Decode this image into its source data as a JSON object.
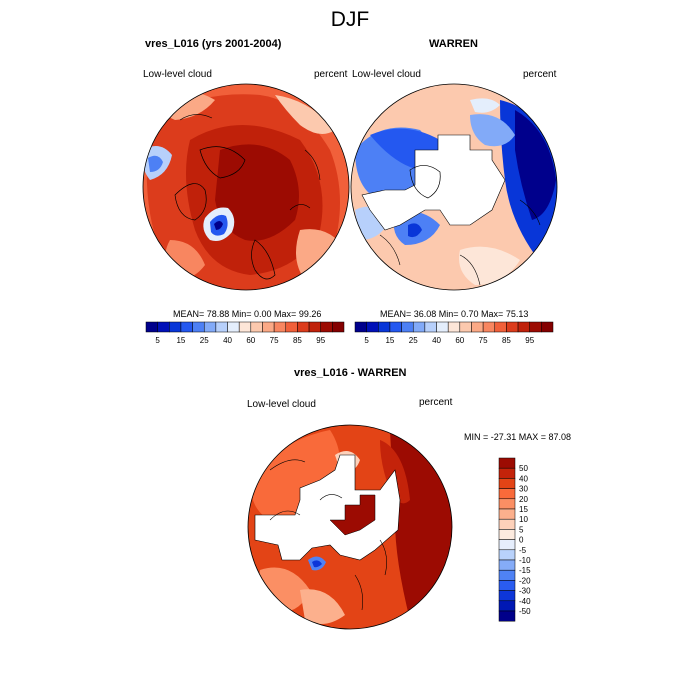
{
  "title": "DJF",
  "panels": [
    {
      "title": "vres_L016 (yrs 2001-2004)",
      "left_label": "Low-level cloud",
      "right_label": "percent",
      "stats": "MEAN=  78.88  Min=   0.00  Max=  99.26"
    },
    {
      "title": "WARREN",
      "left_label": "Low-level cloud",
      "right_label": "percent",
      "stats": "MEAN=  36.08  Min=   0.70  Max=  75.13"
    },
    {
      "title": "vres_L016 - WARREN",
      "left_label": "Low-level cloud",
      "right_label": "percent",
      "stats": "MIN = -27.31 MAX =  87.08"
    }
  ],
  "horizontal_colorbar": {
    "colors": [
      "#00008c",
      "#0010b8",
      "#0836d8",
      "#2458f0",
      "#4d80f5",
      "#82aaf8",
      "#b7d0fb",
      "#e4eefc",
      "#fde6d8",
      "#fcc9ae",
      "#fba986",
      "#f88660",
      "#f1603a",
      "#dc3c1c",
      "#c0210a",
      "#9c0b02",
      "#840000"
    ],
    "tick_labels": [
      "5",
      "15",
      "25",
      "40",
      "60",
      "75",
      "85",
      "95"
    ]
  },
  "vertical_colorbar": {
    "colors": [
      "#9c0b02",
      "#c4230a",
      "#e34416",
      "#f96a3a",
      "#fb8f64",
      "#fcb08d",
      "#fdd1ba",
      "#fdebdf",
      "#e6eefc",
      "#b9d2fb",
      "#85acf8",
      "#4f82f5",
      "#2a5cf0",
      "#0d36d8",
      "#0018b4",
      "#00008a"
    ],
    "tick_labels": [
      "50",
      "40",
      "30",
      "20",
      "15",
      "10",
      "5",
      "0",
      "-5",
      "-10",
      "-15",
      "-20",
      "-30",
      "-40",
      "-50"
    ]
  }
}
